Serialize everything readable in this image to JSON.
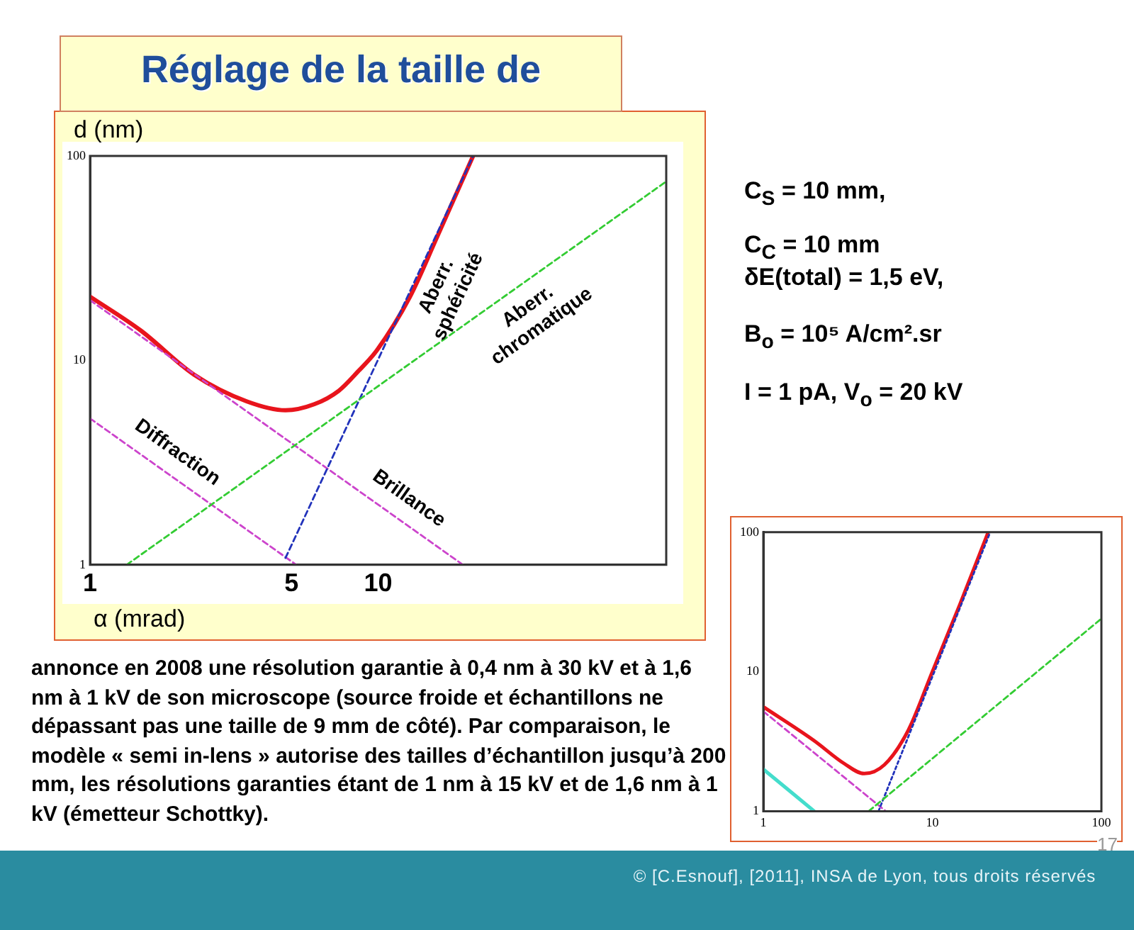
{
  "chart_data": [
    {
      "type": "line",
      "title": "Réglage de la taille de",
      "xlabel": "α (mrad)",
      "ylabel": "d (nm)",
      "log": "xy",
      "xlim": [
        1,
        100
      ],
      "ylim": [
        1,
        100
      ],
      "xticks": [
        1,
        5,
        10
      ],
      "yticks": [
        1,
        10,
        100
      ],
      "grid": false,
      "legend": false,
      "marker": "none",
      "series": [
        {
          "color": "#e8141c",
          "line_style": "solid",
          "x": [
            1,
            1.5,
            2.3,
            3.5,
            4.77,
            6,
            7.3,
            8.5,
            9.9,
            12.9,
            16,
            21.3
          ],
          "values": [
            20.5,
            14,
            8.5,
            6.3,
            5.7,
            6.1,
            7.1,
            8.8,
            11.2,
            20.5,
            40,
            99
          ]
        },
        {
          "name": "Diffraction",
          "color": "#cc44cc",
          "line_style": "dashed",
          "x": [
            1,
            5.2
          ],
          "values": [
            5.2,
            1
          ]
        },
        {
          "name": "Brillance",
          "color": "#cc44cc",
          "line_style": "dashed",
          "x": [
            1,
            19.7
          ],
          "values": [
            19.7,
            1
          ]
        },
        {
          "name": "Aberr. sphéricité",
          "color": "#2233bb",
          "line_style": "dashed",
          "x": [
            4.77,
            21.3
          ],
          "values": [
            1.08,
            99
          ]
        },
        {
          "name": "Aberr. chromatique",
          "color": "#33cc33",
          "line_style": "dashed",
          "x": [
            1.34,
            100
          ],
          "values": [
            1,
            75
          ]
        }
      ],
      "annotations": [
        "C$_{S}$ = 10 mm,",
        "C$_{C}$ = 10 mm",
        "δE(total) = 1,5 eV,",
        "B$_{o}$ = 10⁵ A/cm².sr",
        "I = 1 pA, V$_{o}$ = 20 kV",
        "annonce en 2008 une résolution garantie à 0,4 nm à 30 kV et à 1,6 nm à 1 kV de son microscope (source froide et échantillons ne dépassant pas une taille de 9 mm de côté). Par comparaison, le modèle « semi in-lens » autorise des tailles d’échantillon jusqu’à 200 mm, les résolutions garanties étant de 1 nm à 15 kV et de 1,6 nm à 1 kV (émetteur Schottky).",
        "© [C.Esnouf], [2011], INSA de Lyon, tous droits réservés",
        "17"
      ]
    },
    {
      "type": "line",
      "log": "xy",
      "xlim": [
        1,
        100
      ],
      "ylim": [
        1,
        100
      ],
      "xticks": [
        1,
        10,
        100
      ],
      "yticks": [
        1,
        10,
        100
      ],
      "grid": false,
      "legend": false,
      "marker": "none",
      "series": [
        {
          "color": "#e8141c",
          "line_style": "solid",
          "x": [
            1,
            2,
            3,
            3.95,
            5.2,
            7.2,
            10,
            14.5,
            21.4
          ],
          "values": [
            5.6,
            3.2,
            2.2,
            1.86,
            2.15,
            3.8,
            10,
            30,
            100
          ]
        },
        {
          "color": "#cc44cc",
          "line_style": "dashed",
          "x": [
            1,
            5.3
          ],
          "values": [
            5.2,
            1
          ]
        },
        {
          "color": "#44ddcc",
          "line_style": "solid",
          "x": [
            1,
            2
          ],
          "values": [
            2,
            1
          ]
        },
        {
          "color": "#2233bb",
          "line_style": "dotted",
          "x": [
            4.8,
            22
          ],
          "values": [
            1,
            100
          ]
        },
        {
          "color": "#33cc33",
          "line_style": "dashed",
          "x": [
            4.2,
            100
          ],
          "values": [
            1,
            24
          ]
        }
      ]
    }
  ]
}
